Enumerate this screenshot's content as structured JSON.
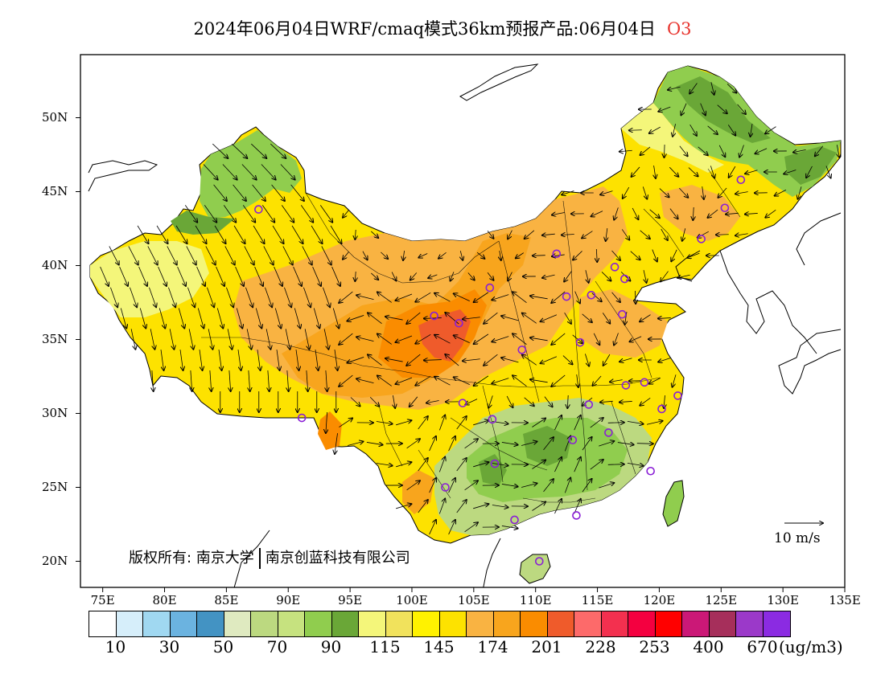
{
  "title": {
    "text": "2024年06月04日WRF/cmaq模式36km预报产品:06月04日",
    "species": "O3"
  },
  "map": {
    "lat_labels": [
      "50N",
      "45N",
      "40N",
      "35N",
      "30N",
      "25N",
      "20N"
    ],
    "lon_labels": [
      "75E",
      "80E",
      "85E",
      "90E",
      "95E",
      "100E",
      "105E",
      "110E",
      "115E",
      "120E",
      "125E",
      "130E",
      "135E"
    ],
    "copyright": "版权所有: 南京大学",
    "copyright_2": "南京创蓝科技有限公司",
    "wind_reference": "10 m/s",
    "stations": [
      {
        "lon": 87.6,
        "lat": 43.8
      },
      {
        "lon": 91.1,
        "lat": 29.7
      },
      {
        "lon": 101.8,
        "lat": 36.6
      },
      {
        "lon": 103.8,
        "lat": 36.1
      },
      {
        "lon": 106.3,
        "lat": 38.5
      },
      {
        "lon": 111.7,
        "lat": 40.8
      },
      {
        "lon": 112.5,
        "lat": 37.9
      },
      {
        "lon": 114.5,
        "lat": 38.0
      },
      {
        "lon": 116.4,
        "lat": 39.9
      },
      {
        "lon": 117.2,
        "lat": 39.1
      },
      {
        "lon": 117.0,
        "lat": 36.7
      },
      {
        "lon": 113.6,
        "lat": 34.8
      },
      {
        "lon": 108.9,
        "lat": 34.3
      },
      {
        "lon": 104.1,
        "lat": 30.7
      },
      {
        "lon": 106.5,
        "lat": 29.6
      },
      {
        "lon": 114.3,
        "lat": 30.6
      },
      {
        "lon": 117.3,
        "lat": 31.9
      },
      {
        "lon": 118.8,
        "lat": 32.1
      },
      {
        "lon": 120.2,
        "lat": 30.3
      },
      {
        "lon": 121.5,
        "lat": 31.2
      },
      {
        "lon": 115.9,
        "lat": 28.7
      },
      {
        "lon": 113.0,
        "lat": 28.2
      },
      {
        "lon": 106.7,
        "lat": 26.6
      },
      {
        "lon": 102.7,
        "lat": 25.0
      },
      {
        "lon": 108.3,
        "lat": 22.8
      },
      {
        "lon": 113.3,
        "lat": 23.1
      },
      {
        "lon": 119.3,
        "lat": 26.1
      },
      {
        "lon": 110.3,
        "lat": 20.0
      },
      {
        "lon": 123.4,
        "lat": 41.8
      },
      {
        "lon": 125.3,
        "lat": 43.9
      },
      {
        "lon": 126.6,
        "lat": 45.8
      }
    ]
  },
  "colorbar": {
    "colors": [
      "#ffffff",
      "#d6eefa",
      "#a0d8f1",
      "#6bb3e0",
      "#4393c3",
      "#dfeac0",
      "#bcd980",
      "#c6e27f",
      "#90cd4e",
      "#6aa737",
      "#f4f67a",
      "#f1e25c",
      "#fff200",
      "#fde200",
      "#f9b342",
      "#f8a51d",
      "#fa8c00",
      "#ef5b2b",
      "#fd6a6a",
      "#f3304f",
      "#f40040",
      "#ff0000",
      "#cb1877",
      "#a62f5b",
      "#9b39c9",
      "#8b2be2"
    ],
    "labels": [
      "10",
      "30",
      "50",
      "70",
      "90",
      "115",
      "145",
      "174",
      "201",
      "228",
      "253",
      "400",
      "670"
    ],
    "unit": "(ug/m3)"
  }
}
